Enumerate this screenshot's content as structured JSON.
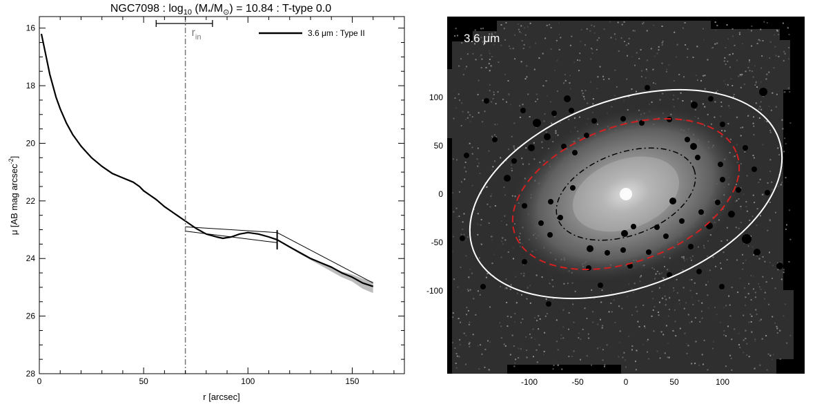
{
  "chart_data": [
    {
      "type": "line",
      "title": "NGC7098 : log₁₀ (M★/M⊙) = 10.84 : T-type 0.0",
      "title_parts": {
        "name": "NGC7098",
        "log": "log",
        "log_sub": "10",
        "mass": "(M",
        "mass_sub": "*",
        "mass_mid": "/M",
        "sun": "⊙",
        "mass_end": ")",
        "rest": "= 10.84 : T-type 0.0"
      },
      "xlabel": "r [arcsec]",
      "ylabel_parts": {
        "main": "μ [AB mag arcsec",
        "sup": "-2",
        "end": "]"
      },
      "xlim": [
        0,
        175
      ],
      "ylim": [
        28,
        15.6
      ],
      "y_inverted": true,
      "x_ticks": [
        0,
        50,
        100,
        150
      ],
      "y_ticks": [
        16,
        18,
        20,
        22,
        24,
        26,
        28
      ],
      "legend": {
        "label": "3.6 μm : Type II",
        "position": "top-right"
      },
      "annotation": {
        "label": "r",
        "sub": "in",
        "x": 70,
        "err": [
          56,
          83
        ]
      },
      "break_radius": 114,
      "series": [
        {
          "name": "3.6 μm : Type II",
          "x": [
            1,
            3,
            5,
            8,
            10,
            13,
            16,
            20,
            25,
            30,
            35,
            40,
            45,
            48,
            50,
            53,
            56,
            60,
            63,
            66,
            70,
            75,
            80,
            85,
            88,
            92,
            96,
            100,
            105,
            110,
            114,
            120,
            125,
            130,
            135,
            140,
            145,
            150,
            155,
            160
          ],
          "y": [
            16.2,
            16.9,
            17.6,
            18.4,
            18.8,
            19.3,
            19.7,
            20.1,
            20.5,
            20.8,
            21.05,
            21.2,
            21.35,
            21.5,
            21.65,
            21.8,
            21.95,
            22.2,
            22.35,
            22.5,
            22.7,
            22.95,
            23.15,
            23.25,
            23.3,
            23.25,
            23.15,
            23.1,
            23.15,
            23.25,
            23.35,
            23.6,
            23.8,
            24.0,
            24.15,
            24.3,
            24.5,
            24.65,
            24.85,
            24.97
          ]
        }
      ],
      "fits": [
        {
          "x": [
            70,
            114
          ],
          "y": [
            22.9,
            23.1
          ]
        },
        {
          "x": [
            70,
            114
          ],
          "y": [
            23.05,
            23.45
          ]
        },
        {
          "x": [
            114,
            160
          ],
          "y": [
            23.1,
            24.85
          ]
        }
      ],
      "uncertainty_band": {
        "x": [
          114,
          125,
          135,
          145,
          150,
          155,
          160
        ],
        "lower": [
          23.35,
          23.8,
          24.15,
          24.45,
          24.55,
          24.7,
          24.8
        ],
        "upper": [
          23.35,
          23.85,
          24.25,
          24.65,
          24.8,
          25.05,
          25.2
        ]
      }
    },
    {
      "type": "image",
      "label": "3.6 μm",
      "x_ticks": [
        -100,
        -50,
        0,
        50,
        100
      ],
      "y_ticks": [
        100,
        50,
        0,
        -50,
        -100
      ],
      "xlim": [
        -185,
        185
      ],
      "ylim": [
        -185,
        185
      ],
      "ellipses": [
        {
          "style": "solid",
          "color": "#ffffff",
          "semi_major": 157,
          "semi_minor": 100,
          "pa_deg": 20
        },
        {
          "style": "dashed",
          "color": "#d42020",
          "semi_major": 114,
          "semi_minor": 72,
          "pa_deg": 20
        },
        {
          "style": "dash-dot",
          "color": "#000000",
          "semi_major": 70,
          "semi_minor": 44,
          "pa_deg": 20
        }
      ]
    }
  ]
}
